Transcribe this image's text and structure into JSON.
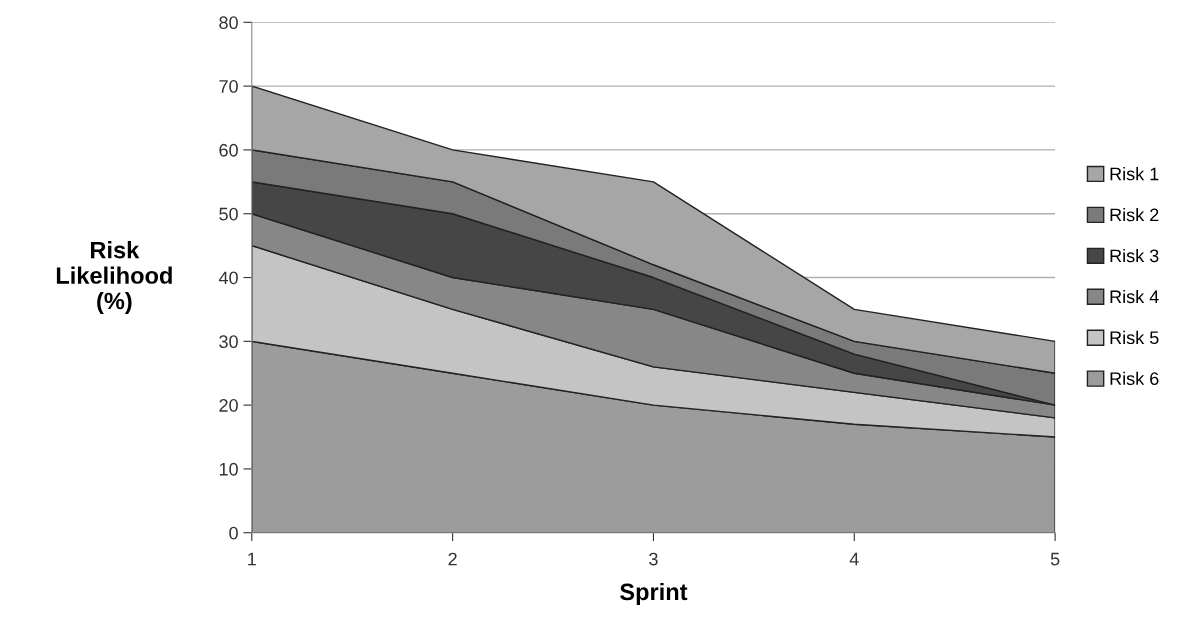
{
  "chart_data": {
    "type": "area",
    "stacked": true,
    "xlabel": "Sprint",
    "ylabel": "Risk\nLikelihood\n(%)",
    "x": [
      1,
      2,
      3,
      4,
      5
    ],
    "xlim": [
      1,
      5
    ],
    "xticks": [
      1,
      2,
      3,
      4,
      5
    ],
    "ylim": [
      0,
      80
    ],
    "yticks": [
      0,
      10,
      20,
      30,
      40,
      50,
      60,
      70,
      80
    ],
    "grid": "y",
    "legend": "right",
    "series": [
      {
        "name": "Risk 6",
        "color": "#9c9c9c",
        "values": [
          30,
          25,
          20,
          17,
          15
        ]
      },
      {
        "name": "Risk 5",
        "color": "#c4c4c4",
        "values": [
          15,
          10,
          6,
          5,
          3
        ]
      },
      {
        "name": "Risk 4",
        "color": "#878787",
        "values": [
          5,
          5,
          9,
          3,
          2
        ]
      },
      {
        "name": "Risk 3",
        "color": "#464646",
        "values": [
          5,
          10,
          5,
          3,
          0
        ]
      },
      {
        "name": "Risk 2",
        "color": "#7a7a7a",
        "values": [
          5,
          5,
          2,
          2,
          5
        ]
      },
      {
        "name": "Risk 1",
        "color": "#a6a6a6",
        "values": [
          10,
          5,
          13,
          5,
          5
        ]
      }
    ]
  }
}
